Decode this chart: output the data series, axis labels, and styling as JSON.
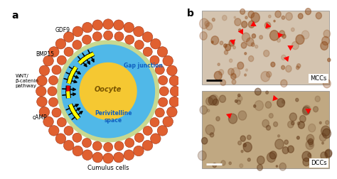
{
  "panel_a_label": "a",
  "panel_b_label": "b",
  "oocyte_label": "Oocyte",
  "gap_junction_label": "Gap junction",
  "perivitelline_label": "Perivitelline\nspace",
  "cumulus_label": "Cumulus cells",
  "annotations": [
    "GDF9",
    "BMP15",
    "WNT/\nβ-catenin\npathway",
    "cAMP"
  ],
  "mcc_label": "MCCs",
  "dcc_label": "DCCs",
  "bg_color": "#ffffff",
  "outer_cell_color": "#e06030",
  "outer_cell_edge": "#a03010",
  "zona_color": "#c8d890",
  "blue_zone_color": "#50b8e8",
  "oocyte_color": "#f5c832",
  "yellow_bar_color": "#ffff00",
  "red_bar_color": "#dd0000",
  "text_color": "#000000",
  "blue_text_color": "#1060c0",
  "oocyte_text_color": "#7a5500"
}
